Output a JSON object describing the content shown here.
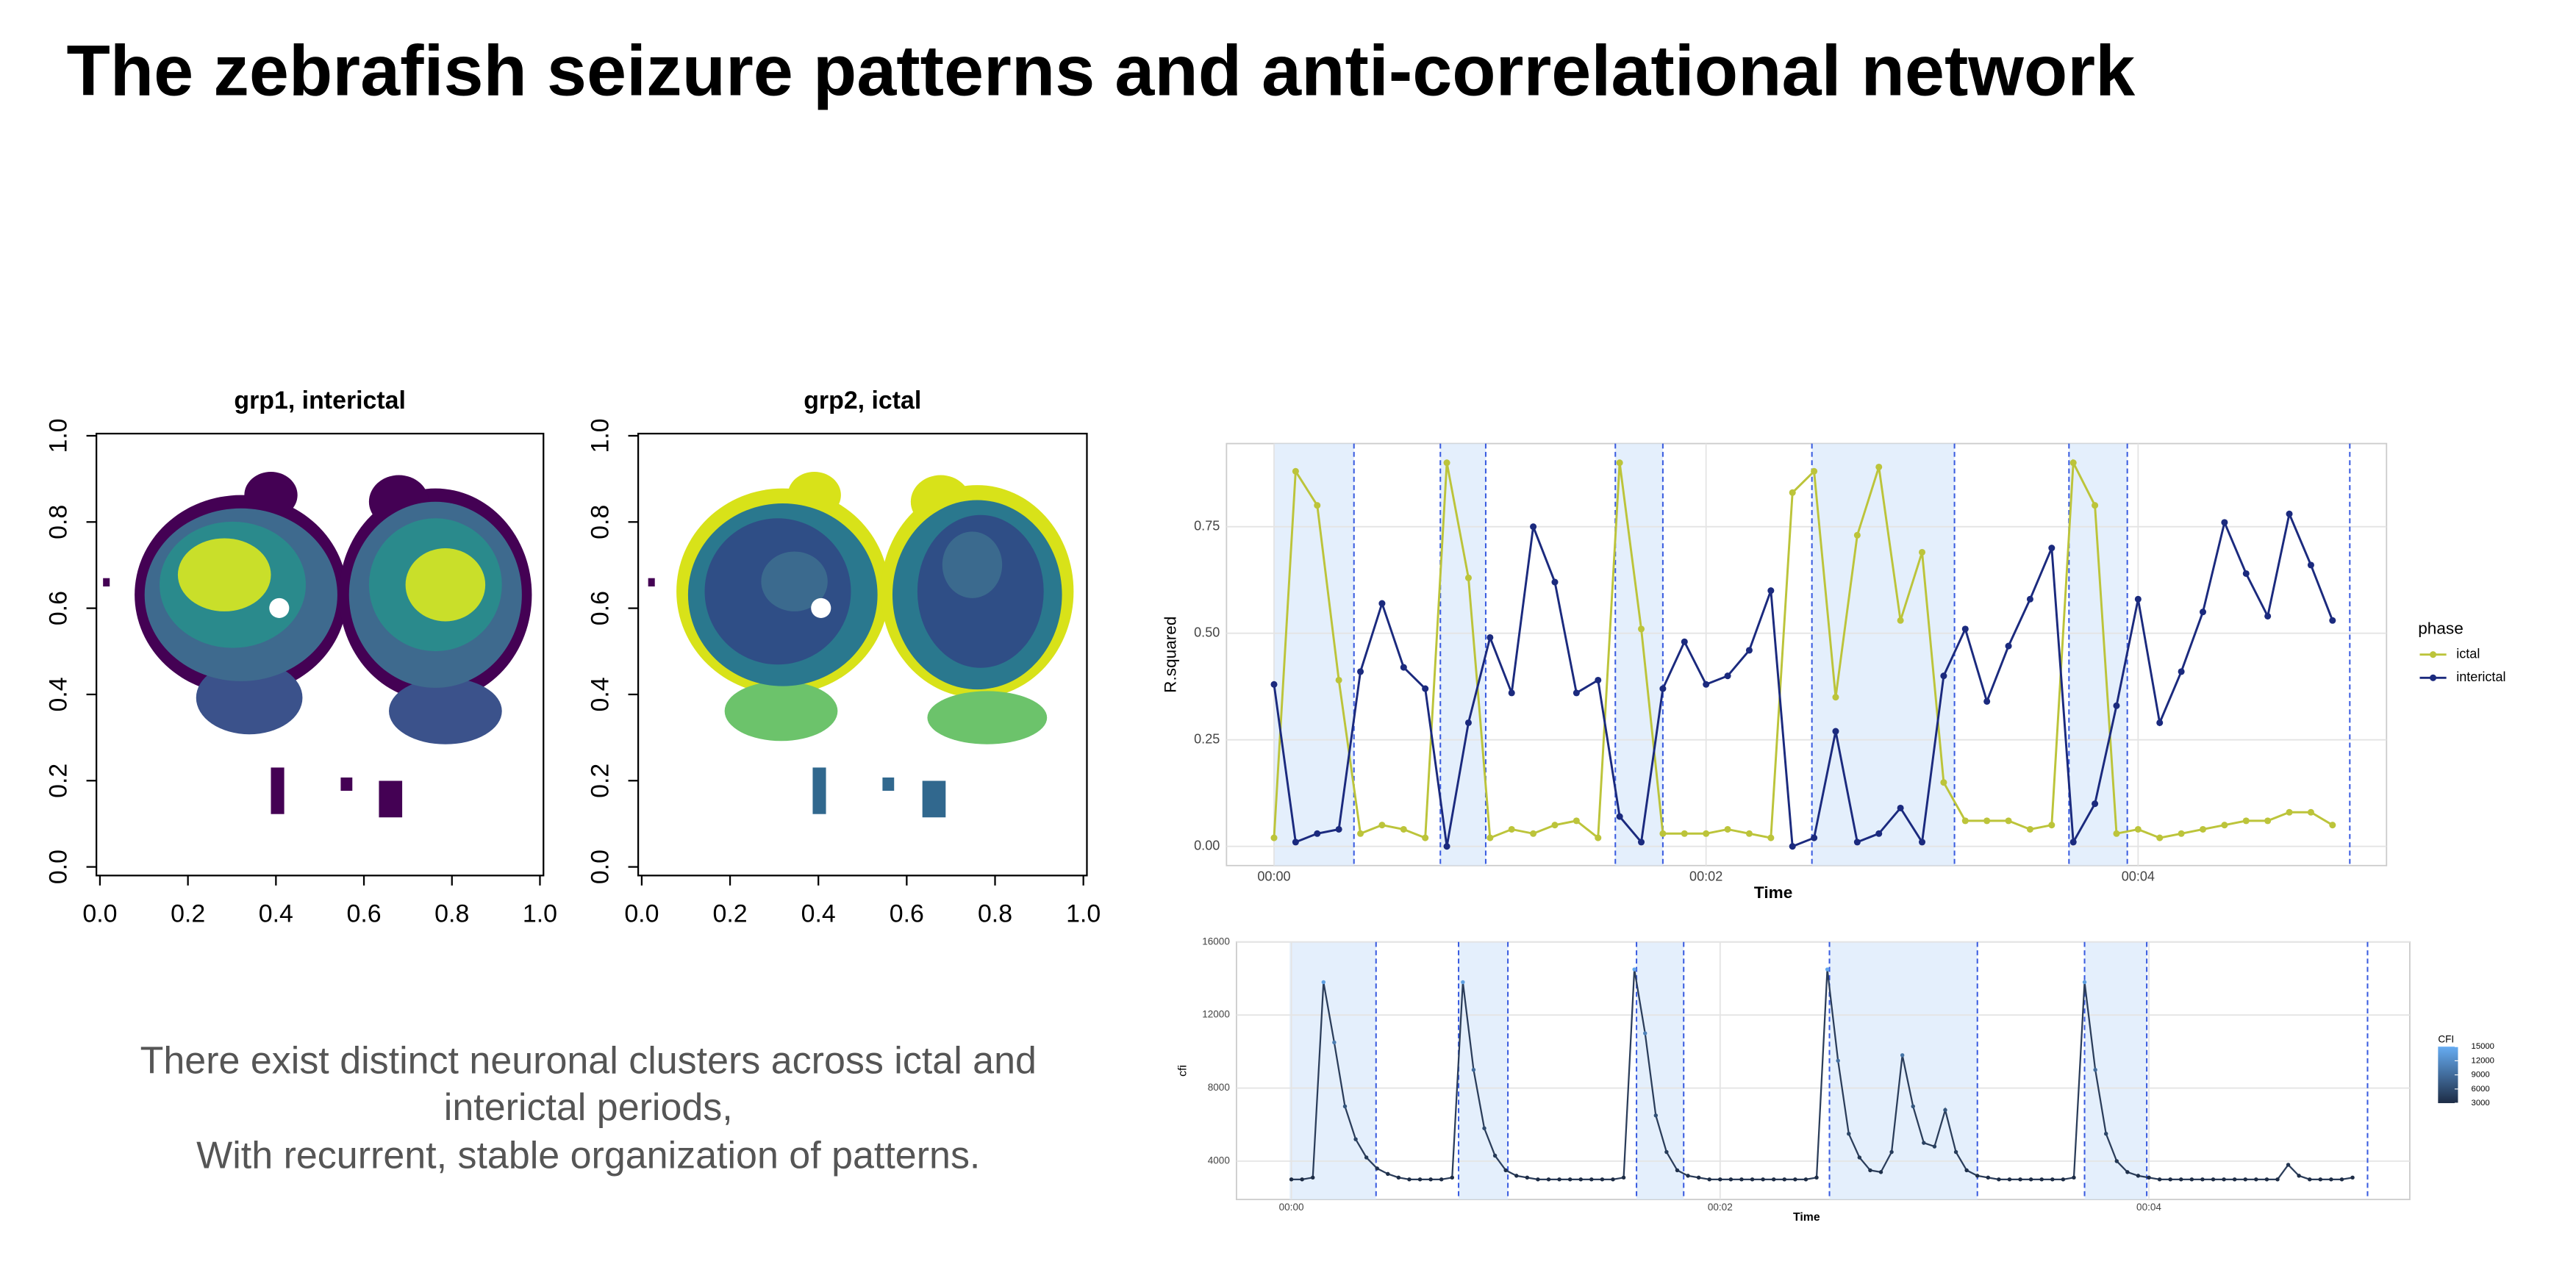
{
  "title": "The zebrafish seizure patterns and anti-correlational network",
  "caption": [
    "There exist distinct neuronal clusters across ictal and",
    "interictal periods,",
    "With recurrent, stable organization of patterns."
  ],
  "chart_data": [
    {
      "type": "image",
      "title": "grp1, interictal",
      "xlim": [
        -0.008,
        1.008
      ],
      "ylim": [
        -0.02,
        1.005
      ],
      "xticks": [
        {
          "value": 0,
          "label": "0.0"
        },
        0.2,
        0.4,
        0.6,
        0.8,
        {
          "value": 1,
          "label": "1.0"
        }
      ],
      "yticks": [
        {
          "value": 0,
          "label": "0.0"
        },
        0.2,
        0.4,
        0.6,
        0.8,
        {
          "value": 1,
          "label": "1.0"
        }
      ]
    },
    {
      "type": "image",
      "title": "grp2, ictal",
      "xlim": [
        -0.008,
        1.008
      ],
      "ylim": [
        -0.02,
        1.005
      ],
      "xticks": [
        {
          "value": 0,
          "label": "0.0"
        },
        0.2,
        0.4,
        0.6,
        0.8,
        {
          "value": 1,
          "label": "1.0"
        }
      ],
      "yticks": [
        {
          "value": 0,
          "label": "0.0"
        },
        0.2,
        0.4,
        0.6,
        0.8,
        {
          "value": 1,
          "label": "1.0"
        }
      ]
    },
    {
      "type": "line",
      "x_label": "Time",
      "y_label": "R.squared",
      "legend_title": "phase",
      "grid": true,
      "xlim": [
        -0.22,
        5.15
      ],
      "ylim": [
        -0.045,
        0.945
      ],
      "xticks": [
        {
          "value": 0,
          "label": "00:00"
        },
        {
          "value": 2,
          "label": "00:02"
        },
        {
          "value": 4,
          "label": "00:04"
        }
      ],
      "yticks": [
        {
          "value": 0,
          "label": "0.00"
        },
        0.25,
        {
          "value": 0.5,
          "label": "0.50"
        },
        0.75
      ],
      "shaded": [
        [
          0,
          0.37
        ],
        [
          0.77,
          0.98
        ],
        [
          1.58,
          1.8
        ],
        [
          2.49,
          3.15
        ],
        [
          3.68,
          3.95
        ]
      ],
      "dashed_lines": [
        0.37,
        0.77,
        0.98,
        1.58,
        1.8,
        2.49,
        3.15,
        3.68,
        3.95,
        4.98
      ],
      "x": [
        0,
        0.1,
        0.2,
        0.3,
        0.4,
        0.5,
        0.6,
        0.7,
        0.8,
        0.9,
        1.0,
        1.1,
        1.2,
        1.3,
        1.4,
        1.5,
        1.6,
        1.7,
        1.8,
        1.9,
        2.0,
        2.1,
        2.2,
        2.3,
        2.4,
        2.5,
        2.6,
        2.7,
        2.8,
        2.9,
        3.0,
        3.1,
        3.2,
        3.3,
        3.4,
        3.5,
        3.6,
        3.7,
        3.8,
        3.9,
        4.0,
        4.1,
        4.2,
        4.3,
        4.4,
        4.5,
        4.6,
        4.7,
        4.8,
        4.9
      ],
      "series": [
        {
          "name": "ictal",
          "color": "#bcc43a",
          "values": [
            0.02,
            0.88,
            0.8,
            0.39,
            0.03,
            0.05,
            0.04,
            0.02,
            0.9,
            0.63,
            0.02,
            0.04,
            0.03,
            0.05,
            0.06,
            0.02,
            0.9,
            0.51,
            0.03,
            0.03,
            0.03,
            0.04,
            0.03,
            0.02,
            0.83,
            0.88,
            0.35,
            0.73,
            0.89,
            0.53,
            0.69,
            0.15,
            0.06,
            0.06,
            0.06,
            0.04,
            0.05,
            0.9,
            0.8,
            0.03,
            0.04,
            0.02,
            0.03,
            0.04,
            0.05,
            0.06,
            0.06,
            0.08,
            0.08,
            0.05
          ]
        },
        {
          "name": "interictal",
          "color": "#1b2a7e",
          "values": [
            0.38,
            0.01,
            0.03,
            0.04,
            0.41,
            0.57,
            0.42,
            0.37,
            0.0,
            0.29,
            0.49,
            0.36,
            0.75,
            0.62,
            0.36,
            0.39,
            0.07,
            0.01,
            0.37,
            0.48,
            0.38,
            0.4,
            0.46,
            0.6,
            0.0,
            0.02,
            0.27,
            0.01,
            0.03,
            0.09,
            0.01,
            0.4,
            0.51,
            0.34,
            0.47,
            0.58,
            0.7,
            0.01,
            0.1,
            0.33,
            0.58,
            0.29,
            0.41,
            0.55,
            0.76,
            0.64,
            0.54,
            0.78,
            0.66,
            0.53
          ]
        }
      ]
    },
    {
      "type": "line",
      "x_label": "Time",
      "y_label": "cfi",
      "legend_title": "CFI",
      "grid": true,
      "xlim": [
        -0.256,
        5.217
      ],
      "ylim": [
        1900,
        16000
      ],
      "xticks": [
        {
          "value": 0,
          "label": "00:00"
        },
        {
          "value": 2,
          "label": "00:02"
        },
        {
          "value": 4,
          "label": "00:04"
        }
      ],
      "yticks": [
        4000,
        8000,
        12000,
        16000
      ],
      "colorbar_ticks": [
        15000,
        12000,
        9000,
        6000,
        3000
      ],
      "color_scale": [
        "#1d2c45",
        "#66acf2"
      ],
      "shaded": [
        [
          -0.008,
          0.395
        ],
        [
          0.78,
          1.01
        ],
        [
          1.61,
          1.83
        ],
        [
          2.51,
          3.2
        ],
        [
          3.7,
          3.99
        ]
      ],
      "dashed_lines": [
        0.395,
        0.78,
        1.01,
        1.61,
        1.83,
        2.51,
        3.2,
        3.7,
        3.99,
        5.02
      ],
      "x": [
        0,
        0.05,
        0.1,
        0.15,
        0.2,
        0.25,
        0.3,
        0.35,
        0.4,
        0.45,
        0.5,
        0.55,
        0.6,
        0.65,
        0.7,
        0.75,
        0.8,
        0.85,
        0.9,
        0.95,
        1.0,
        1.05,
        1.1,
        1.15,
        1.2,
        1.25,
        1.3,
        1.35,
        1.4,
        1.45,
        1.5,
        1.55,
        1.6,
        1.65,
        1.7,
        1.75,
        1.8,
        1.85,
        1.9,
        1.95,
        2.0,
        2.05,
        2.1,
        2.15,
        2.2,
        2.25,
        2.3,
        2.35,
        2.4,
        2.45,
        2.5,
        2.55,
        2.6,
        2.65,
        2.7,
        2.75,
        2.8,
        2.85,
        2.9,
        2.95,
        3.0,
        3.05,
        3.1,
        3.15,
        3.2,
        3.25,
        3.3,
        3.35,
        3.4,
        3.45,
        3.5,
        3.55,
        3.6,
        3.65,
        3.7,
        3.75,
        3.8,
        3.85,
        3.9,
        3.95,
        4.0,
        4.05,
        4.1,
        4.15,
        4.2,
        4.25,
        4.3,
        4.35,
        4.4,
        4.45,
        4.5,
        4.55,
        4.6,
        4.65,
        4.7,
        4.75,
        4.8,
        4.85,
        4.9,
        4.95
      ],
      "series": [
        {
          "name": "cfi",
          "values": [
            3000,
            3000,
            3100,
            13800,
            10500,
            7000,
            5200,
            4200,
            3600,
            3300,
            3100,
            3000,
            3000,
            3000,
            3000,
            3100,
            13800,
            9000,
            5800,
            4300,
            3500,
            3200,
            3100,
            3000,
            3000,
            3000,
            3000,
            3000,
            3000,
            3000,
            3000,
            3100,
            14500,
            11000,
            6500,
            4500,
            3500,
            3200,
            3100,
            3000,
            3000,
            3000,
            3000,
            3000,
            3000,
            3000,
            3000,
            3000,
            3000,
            3100,
            14500,
            9500,
            5500,
            4200,
            3500,
            3400,
            4500,
            9800,
            7000,
            5000,
            4800,
            6800,
            4500,
            3500,
            3200,
            3100,
            3000,
            3000,
            3000,
            3000,
            3000,
            3000,
            3000,
            3100,
            13800,
            9000,
            5500,
            4000,
            3400,
            3200,
            3100,
            3000,
            3000,
            3000,
            3000,
            3000,
            3000,
            3000,
            3000,
            3000,
            3000,
            3000,
            3000,
            3800,
            3200,
            3000,
            3000,
            3000,
            3000,
            3100
          ]
        }
      ]
    }
  ]
}
